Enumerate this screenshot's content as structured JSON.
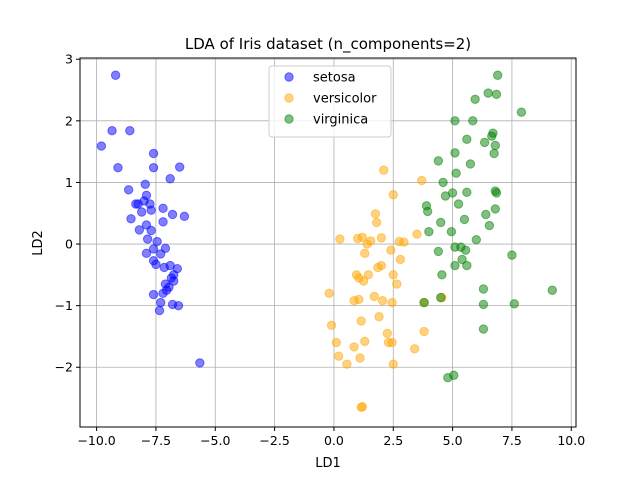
{
  "chart_data": {
    "type": "scatter",
    "title": "LDA of Iris dataset (n_components=2)",
    "xlabel": "LD1",
    "ylabel": "LD2",
    "xlim": [
      -10.7,
      10.2
    ],
    "ylim": [
      -2.97,
      3.02
    ],
    "xticks": [
      -10.0,
      -7.5,
      -5.0,
      -2.5,
      0.0,
      2.5,
      5.0,
      7.5,
      10.0
    ],
    "xtick_labels": [
      "−10.0",
      "−7.5",
      "−5.0",
      "−2.5",
      "0.0",
      "2.5",
      "5.0",
      "7.5",
      "10.0"
    ],
    "yticks": [
      -2,
      -1,
      0,
      1,
      2,
      3
    ],
    "ytick_labels": [
      "−2",
      "−1",
      "0",
      "1",
      "2",
      "3"
    ],
    "grid": true,
    "legend": "top-center",
    "series": [
      {
        "name": "setosa",
        "color": "#0000ff",
        "points": [
          [
            -9.2,
            2.74
          ],
          [
            -9.8,
            1.59
          ],
          [
            -9.35,
            1.84
          ],
          [
            -8.6,
            1.84
          ],
          [
            -9.1,
            1.24
          ],
          [
            -7.6,
            1.47
          ],
          [
            -8.65,
            0.88
          ],
          [
            -7.6,
            1.24
          ],
          [
            -6.5,
            1.25
          ],
          [
            -6.9,
            1.06
          ],
          [
            -7.95,
            0.97
          ],
          [
            -7.9,
            0.79
          ],
          [
            -8.0,
            0.7
          ],
          [
            -8.25,
            0.65
          ],
          [
            -8.35,
            0.65
          ],
          [
            -7.75,
            0.65
          ],
          [
            -8.1,
            0.52
          ],
          [
            -7.7,
            0.55
          ],
          [
            -7.2,
            0.58
          ],
          [
            -6.8,
            0.48
          ],
          [
            -6.3,
            0.45
          ],
          [
            -8.55,
            0.41
          ],
          [
            -7.9,
            0.31
          ],
          [
            -7.7,
            0.22
          ],
          [
            -8.2,
            0.23
          ],
          [
            -7.2,
            0.36
          ],
          [
            -7.85,
            0.08
          ],
          [
            -7.45,
            0.04
          ],
          [
            -7.6,
            -0.08
          ],
          [
            -7.1,
            -0.07
          ],
          [
            -7.9,
            -0.15
          ],
          [
            -7.3,
            -0.16
          ],
          [
            -7.6,
            -0.27
          ],
          [
            -7.5,
            -0.33
          ],
          [
            -7.15,
            -0.38
          ],
          [
            -6.9,
            -0.35
          ],
          [
            -6.6,
            -0.4
          ],
          [
            -6.75,
            -0.5
          ],
          [
            -6.85,
            -0.55
          ],
          [
            -7.1,
            -0.65
          ],
          [
            -6.95,
            -0.7
          ],
          [
            -7.05,
            -0.75
          ],
          [
            -7.6,
            -0.82
          ],
          [
            -7.2,
            -0.8
          ],
          [
            -7.3,
            -0.95
          ],
          [
            -6.8,
            -0.98
          ],
          [
            -6.55,
            -1.0
          ],
          [
            -7.35,
            -1.08
          ],
          [
            -5.65,
            -1.93
          ],
          [
            -6.75,
            -0.6
          ]
        ]
      },
      {
        "name": "versicolor",
        "color": "#ffa500",
        "points": [
          [
            2.1,
            1.2
          ],
          [
            2.5,
            0.8
          ],
          [
            3.7,
            1.03
          ],
          [
            1.75,
            0.49
          ],
          [
            1.8,
            0.35
          ],
          [
            1.2,
            0.11
          ],
          [
            1.3,
            -0.15
          ],
          [
            1.55,
            0.05
          ],
          [
            2.0,
            0.1
          ],
          [
            2.75,
            0.04
          ],
          [
            2.95,
            0.03
          ],
          [
            3.5,
            0.16
          ],
          [
            0.25,
            0.08
          ],
          [
            1.0,
            0.09
          ],
          [
            2.4,
            -0.1
          ],
          [
            2.0,
            -0.35
          ],
          [
            1.85,
            -0.38
          ],
          [
            1.45,
            -0.5
          ],
          [
            2.5,
            -0.5
          ],
          [
            1.05,
            -0.55
          ],
          [
            0.95,
            -0.5
          ],
          [
            2.65,
            -0.65
          ],
          [
            1.25,
            -0.6
          ],
          [
            1.7,
            -0.85
          ],
          [
            2.05,
            -0.92
          ],
          [
            2.45,
            -0.95
          ],
          [
            1.05,
            -0.9
          ],
          [
            0.85,
            -0.92
          ],
          [
            -0.2,
            -0.8
          ],
          [
            3.8,
            -0.95
          ],
          [
            4.55,
            -0.87
          ],
          [
            1.9,
            -1.18
          ],
          [
            1.15,
            -1.25
          ],
          [
            -0.1,
            -1.32
          ],
          [
            2.25,
            -1.45
          ],
          [
            3.8,
            -1.42
          ],
          [
            0.1,
            -1.6
          ],
          [
            0.85,
            -1.67
          ],
          [
            2.3,
            -1.6
          ],
          [
            2.45,
            -1.6
          ],
          [
            1.3,
            -1.58
          ],
          [
            3.4,
            -1.7
          ],
          [
            0.2,
            -1.82
          ],
          [
            1.1,
            -1.85
          ],
          [
            0.55,
            -1.95
          ],
          [
            2.5,
            -1.95
          ],
          [
            1.15,
            -2.65
          ],
          [
            1.2,
            -2.64
          ],
          [
            1.4,
            0.0
          ],
          [
            2.8,
            -0.25
          ]
        ]
      },
      {
        "name": "virginica",
        "color": "#008000",
        "points": [
          [
            6.9,
            2.74
          ],
          [
            6.5,
            2.45
          ],
          [
            6.85,
            2.43
          ],
          [
            5.95,
            2.35
          ],
          [
            7.9,
            2.14
          ],
          [
            5.1,
            2.0
          ],
          [
            5.85,
            2.0
          ],
          [
            6.7,
            1.8
          ],
          [
            6.65,
            1.75
          ],
          [
            5.6,
            1.7
          ],
          [
            6.35,
            1.65
          ],
          [
            6.8,
            1.6
          ],
          [
            6.75,
            1.47
          ],
          [
            5.1,
            1.48
          ],
          [
            4.4,
            1.35
          ],
          [
            5.75,
            1.3
          ],
          [
            5.15,
            1.15
          ],
          [
            4.6,
            1.0
          ],
          [
            6.8,
            0.86
          ],
          [
            6.85,
            0.83
          ],
          [
            5.6,
            0.84
          ],
          [
            5.0,
            0.83
          ],
          [
            4.7,
            0.78
          ],
          [
            3.9,
            0.62
          ],
          [
            3.95,
            0.53
          ],
          [
            5.25,
            0.65
          ],
          [
            6.8,
            0.57
          ],
          [
            6.4,
            0.48
          ],
          [
            4.5,
            0.35
          ],
          [
            6.55,
            0.3
          ],
          [
            4.0,
            0.2
          ],
          [
            4.95,
            0.2
          ],
          [
            6.0,
            0.07
          ],
          [
            5.1,
            -0.05
          ],
          [
            5.35,
            -0.05
          ],
          [
            5.55,
            -0.1
          ],
          [
            4.4,
            -0.12
          ],
          [
            5.4,
            -0.25
          ],
          [
            7.5,
            -0.18
          ],
          [
            5.1,
            -0.35
          ],
          [
            5.6,
            -0.35
          ],
          [
            4.55,
            -0.5
          ],
          [
            6.3,
            -0.73
          ],
          [
            4.5,
            -0.87
          ],
          [
            3.8,
            -0.95
          ],
          [
            6.3,
            -0.98
          ],
          [
            7.6,
            -0.97
          ],
          [
            9.2,
            -0.75
          ],
          [
            6.3,
            -1.38
          ],
          [
            4.8,
            -2.17
          ],
          [
            5.05,
            -2.13
          ],
          [
            5.5,
            0.4
          ]
        ]
      }
    ]
  }
}
